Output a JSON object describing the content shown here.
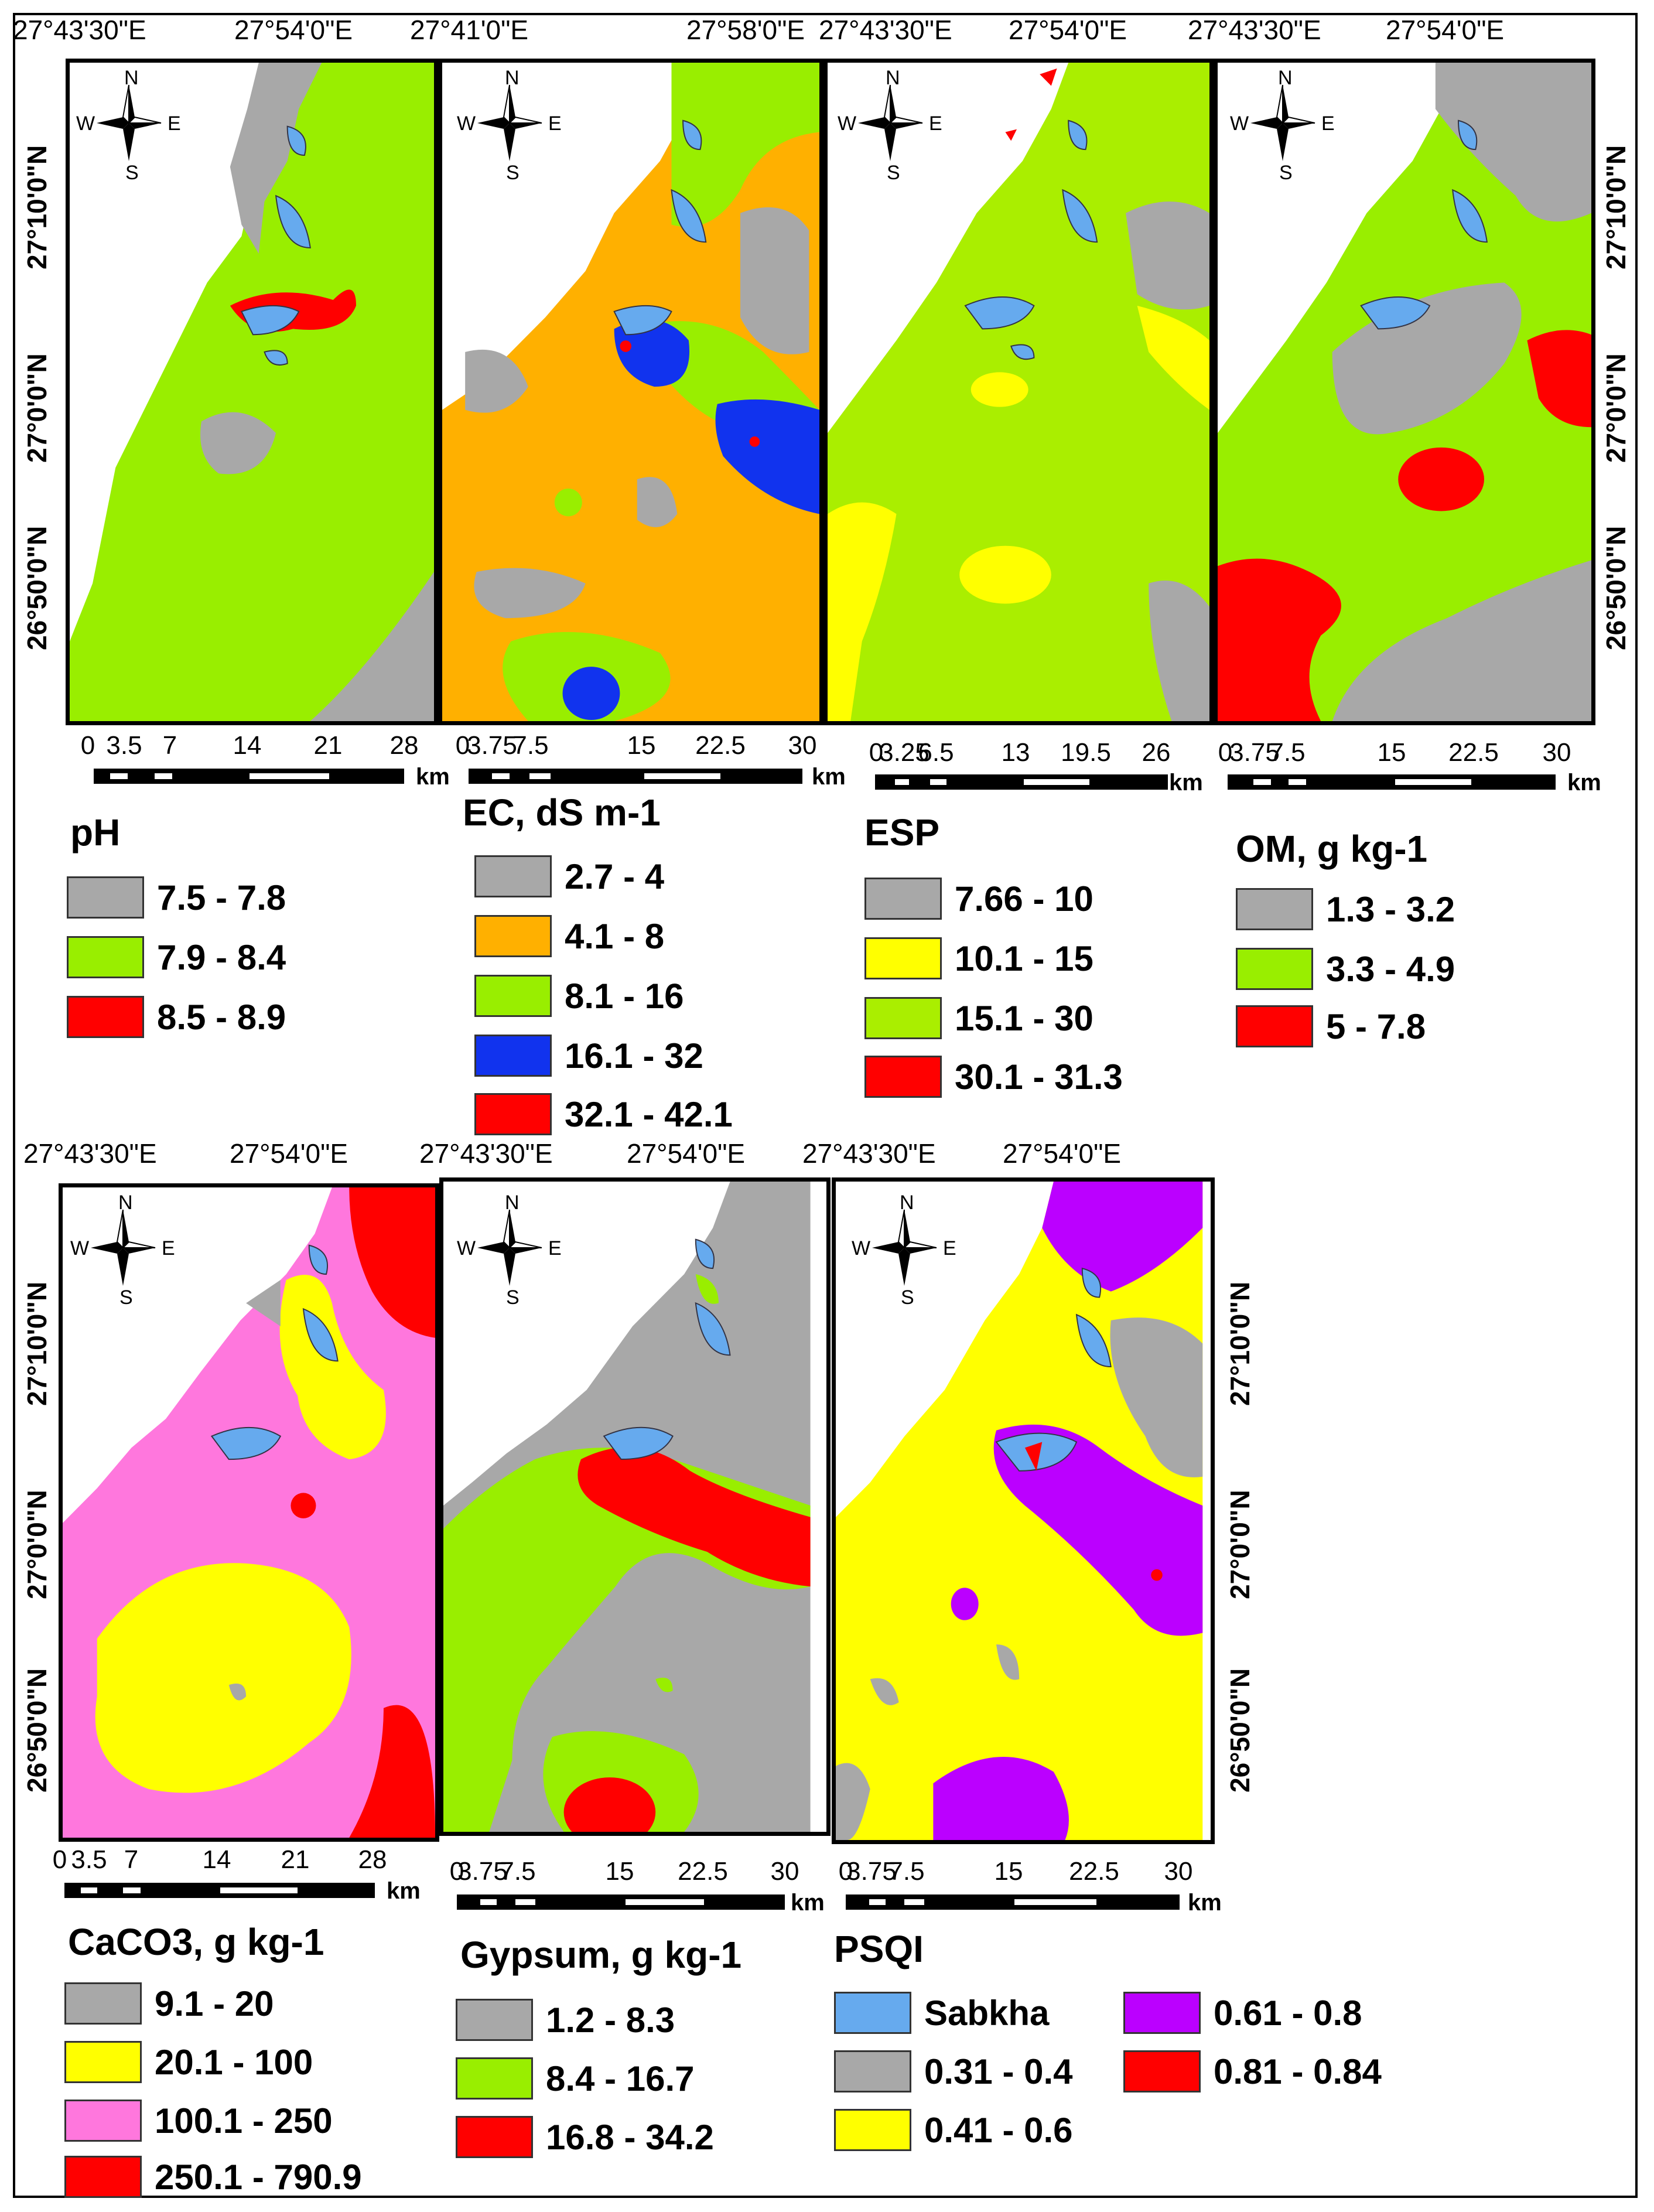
{
  "colors": {
    "gray": "#a8a8a8",
    "green": "#99ee00",
    "red": "#ff0000",
    "orange": "#ffb000",
    "blue": "#1133ee",
    "yellow": "#ffff00",
    "lightgreen": "#aaee00",
    "pink": "#ff77dd",
    "purple": "#bb00ff",
    "sabkha": "#66aaee"
  },
  "compass": {
    "n": "N",
    "s": "S",
    "e": "E",
    "w": "W"
  },
  "lat_labels": {
    "l1": "27°10'0\"N",
    "l2": "27°0'0\"N",
    "l3": "26°50'0\"N"
  },
  "top_row": {
    "coords": {
      "c1": "27°43'30\"E",
      "c2": "27°54'0\"E",
      "c3": "27°41'0\"E",
      "c4": "27°58'0\"E",
      "c5": "27°43'30\"E",
      "c6": "27°54'0\"E",
      "c7": "27°43'30\"E",
      "c8": "27°54'0\"E"
    },
    "maps": [
      {
        "id": "ph",
        "scale": {
          "ticks": [
            "0",
            "3.5",
            "7",
            "14",
            "21",
            "28"
          ],
          "unit": "km"
        },
        "legend": {
          "title": "pH",
          "items": [
            {
              "label": "7.5 - 7.8",
              "color": "#a8a8a8"
            },
            {
              "label": "7.9 - 8.4",
              "color": "#99ee00"
            },
            {
              "label": "8.5 - 8.9",
              "color": "#ff0000"
            }
          ]
        }
      },
      {
        "id": "ec",
        "scale": {
          "ticks": [
            "0",
            "3.75",
            "7.5",
            "15",
            "22.5",
            "30"
          ],
          "unit": "km"
        },
        "legend": {
          "title": "EC, dS m-1",
          "items": [
            {
              "label": "2.7 - 4",
              "color": "#a8a8a8"
            },
            {
              "label": "4.1 - 8",
              "color": "#ffb000"
            },
            {
              "label": "8.1 - 16",
              "color": "#99ee00"
            },
            {
              "label": "16.1 - 32",
              "color": "#1133ee"
            },
            {
              "label": "32.1 - 42.1",
              "color": "#ff0000"
            }
          ]
        }
      },
      {
        "id": "esp",
        "scale": {
          "ticks": [
            "0",
            "3.25",
            "6.5",
            "13",
            "19.5",
            "26"
          ],
          "unit": "km"
        },
        "legend": {
          "title": "ESP",
          "items": [
            {
              "label": "7.66 - 10",
              "color": "#a8a8a8"
            },
            {
              "label": "10.1 - 15",
              "color": "#ffff00"
            },
            {
              "label": "15.1 - 30",
              "color": "#aaee00"
            },
            {
              "label": "30.1 - 31.3",
              "color": "#ff0000"
            }
          ]
        }
      },
      {
        "id": "om",
        "scale": {
          "ticks": [
            "0",
            "3.75",
            "7.5",
            "15",
            "22.5",
            "30"
          ],
          "unit": "km"
        },
        "legend": {
          "title": "OM, g kg-1",
          "items": [
            {
              "label": "1.3 - 3.2",
              "color": "#a8a8a8"
            },
            {
              "label": "3.3 - 4.9",
              "color": "#99ee00"
            },
            {
              "label": "5 - 7.8",
              "color": "#ff0000"
            }
          ]
        }
      }
    ]
  },
  "bottom_row": {
    "coords": {
      "c1": "27°43'30\"E",
      "c2": "27°54'0\"E",
      "c3": "27°43'30\"E",
      "c4": "27°54'0\"E",
      "c5": "27°43'30\"E",
      "c6": "27°54'0\"E"
    },
    "maps": [
      {
        "id": "caco3",
        "scale": {
          "ticks": [
            "0",
            "3.5",
            "7",
            "14",
            "21",
            "28"
          ],
          "unit": "km"
        },
        "legend": {
          "title": "CaCO3, g kg-1",
          "items": [
            {
              "label": "9.1 - 20",
              "color": "#a8a8a8"
            },
            {
              "label": "20.1 - 100",
              "color": "#ffff00"
            },
            {
              "label": "100.1 - 250",
              "color": "#ff77dd"
            },
            {
              "label": "250.1 - 790.9",
              "color": "#ff0000"
            }
          ]
        }
      },
      {
        "id": "gypsum",
        "scale": {
          "ticks": [
            "0",
            "3.75",
            "7.5",
            "15",
            "22.5",
            "30"
          ],
          "unit": "km"
        },
        "legend": {
          "title": "Gypsum, g kg-1",
          "items": [
            {
              "label": "1.2 - 8.3",
              "color": "#a8a8a8"
            },
            {
              "label": "8.4 - 16.7",
              "color": "#99ee00"
            },
            {
              "label": "16.8 - 34.2",
              "color": "#ff0000"
            }
          ]
        }
      },
      {
        "id": "psqi",
        "scale": {
          "ticks": [
            "0",
            "3.75",
            "7.5",
            "15",
            "22.5",
            "30"
          ],
          "unit": "km"
        },
        "legend": {
          "title": "PSQI",
          "items": [
            {
              "label": "Sabkha",
              "color": "#66aaee"
            },
            {
              "label": "0.31 - 0.4",
              "color": "#a8a8a8"
            },
            {
              "label": "0.41 - 0.6",
              "color": "#ffff00"
            },
            {
              "label": "0.61 - 0.8",
              "color": "#bb00ff"
            },
            {
              "label": "0.81 - 0.84",
              "color": "#ff0000"
            }
          ]
        }
      }
    ]
  }
}
